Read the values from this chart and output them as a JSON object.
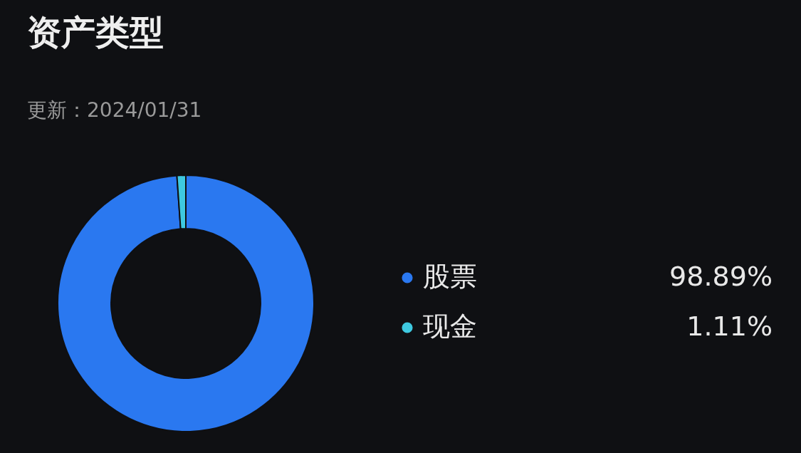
{
  "chart_data": {
    "type": "donut",
    "title": "资产类型",
    "subtitle": "更新：2024/01/31",
    "categories": [
      "股票",
      "现金"
    ],
    "values": [
      98.89,
      1.11
    ],
    "colors": [
      "#2a78f0",
      "#3ec9e0"
    ],
    "value_labels": [
      "98.89%",
      "1.11%"
    ],
    "legend": "right"
  }
}
